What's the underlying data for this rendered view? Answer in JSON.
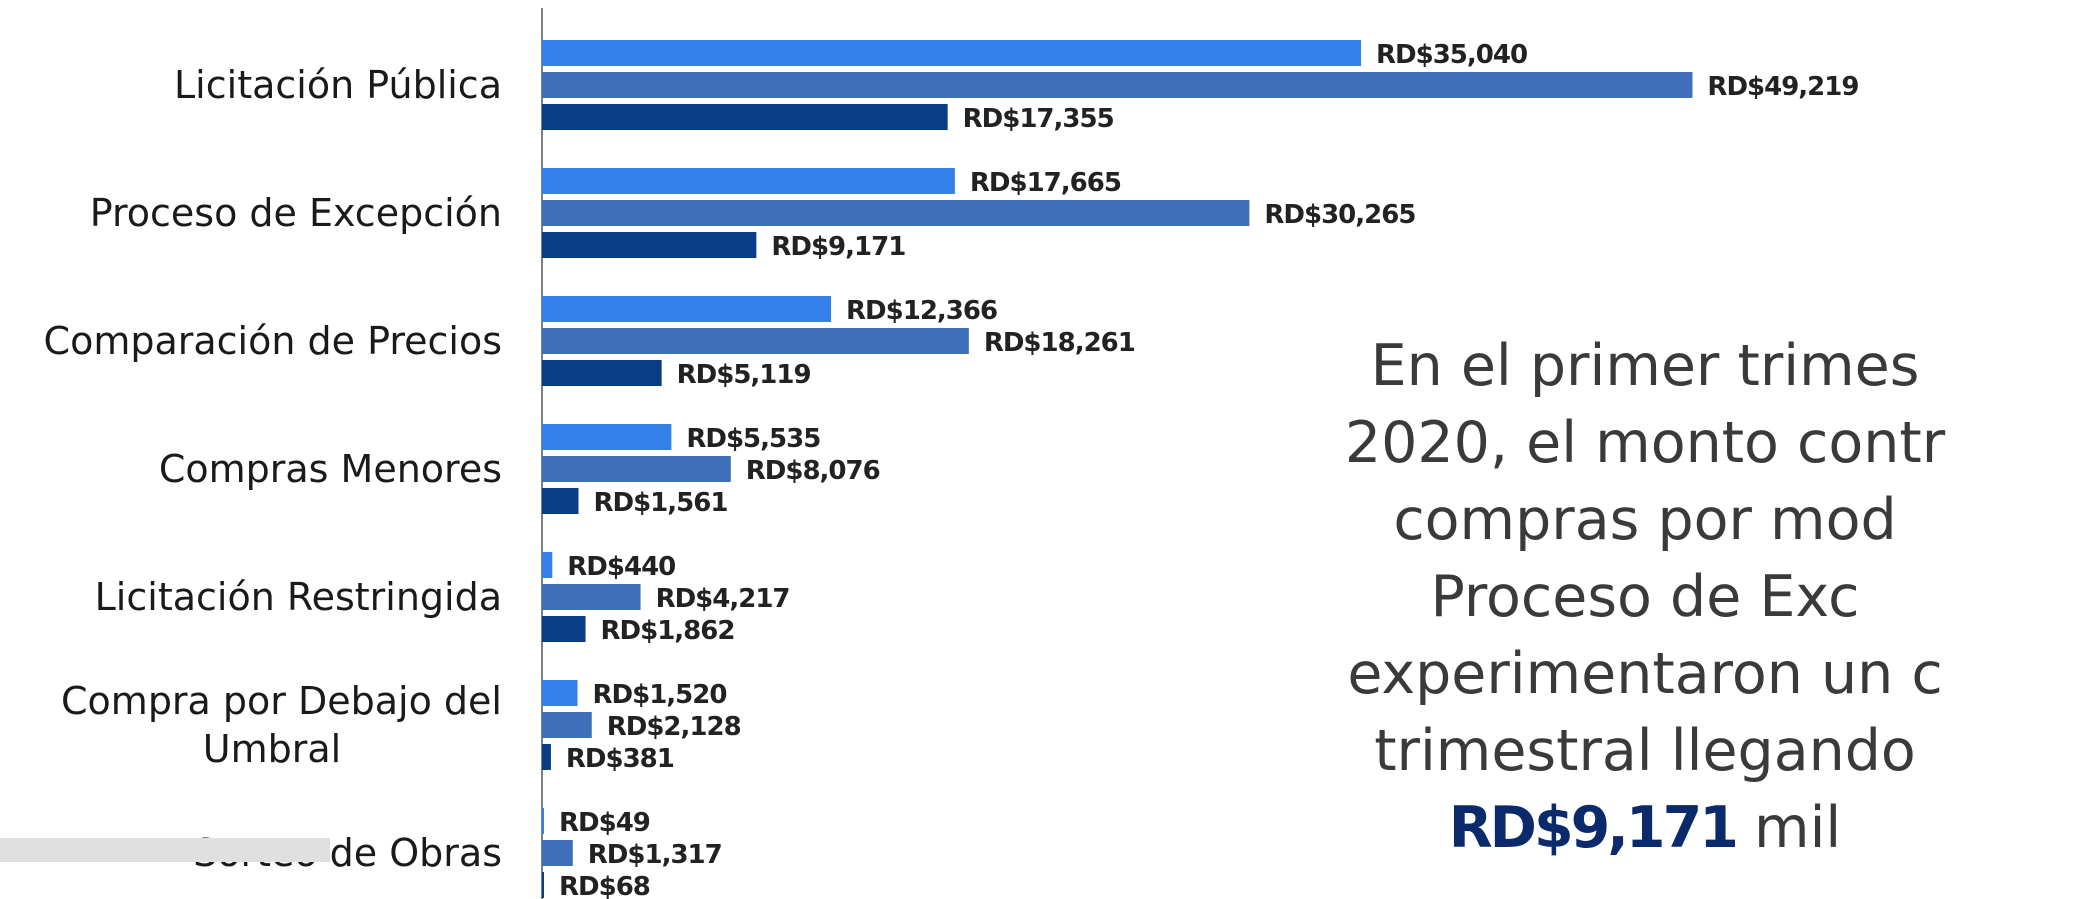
{
  "chart_data": {
    "type": "bar",
    "orientation": "horizontal",
    "categories": [
      "Licitación Pública",
      "Proceso de Excepción",
      "Comparación de Precios",
      "Compras Menores",
      "Licitación Restringida",
      "Compra por Debajo del Umbral",
      "Sorteo de Obras"
    ],
    "series": [
      {
        "color": "#3580e8",
        "values": [
          35040,
          17665,
          12366,
          5535,
          440,
          1520,
          49
        ]
      },
      {
        "color": "#3e6fb8",
        "values": [
          49219,
          30265,
          18261,
          8076,
          4217,
          2128,
          1317
        ]
      },
      {
        "color": "#0a3d86",
        "values": [
          17355,
          9171,
          5119,
          1561,
          1862,
          381,
          68
        ]
      }
    ],
    "data_labels": [
      [
        "RD$35,040",
        "RD$49,219",
        "RD$17,355"
      ],
      [
        "RD$17,665",
        "RD$30,265",
        "RD$9,171"
      ],
      [
        "RD$12,366",
        "RD$18,261",
        "RD$5,119"
      ],
      [
        "RD$5,535",
        "RD$8,076",
        "RD$1,561"
      ],
      [
        "RD$440",
        "RD$4,217",
        "RD$1,862"
      ],
      [
        "RD$1,520",
        "RD$2,128",
        "RD$381"
      ],
      [
        "RD$49",
        "RD$1,317",
        "RD$68"
      ]
    ],
    "xlim": [
      0,
      49500
    ],
    "grid": false,
    "legend": "none"
  },
  "caption": {
    "lines": [
      "En el primer trimes",
      "2020, el monto contr",
      "compras por mod",
      "Proceso de Exc",
      "experimentaron un c",
      "trimestral llegando"
    ],
    "highlight": "RD$9,171",
    "tail": " mil"
  }
}
